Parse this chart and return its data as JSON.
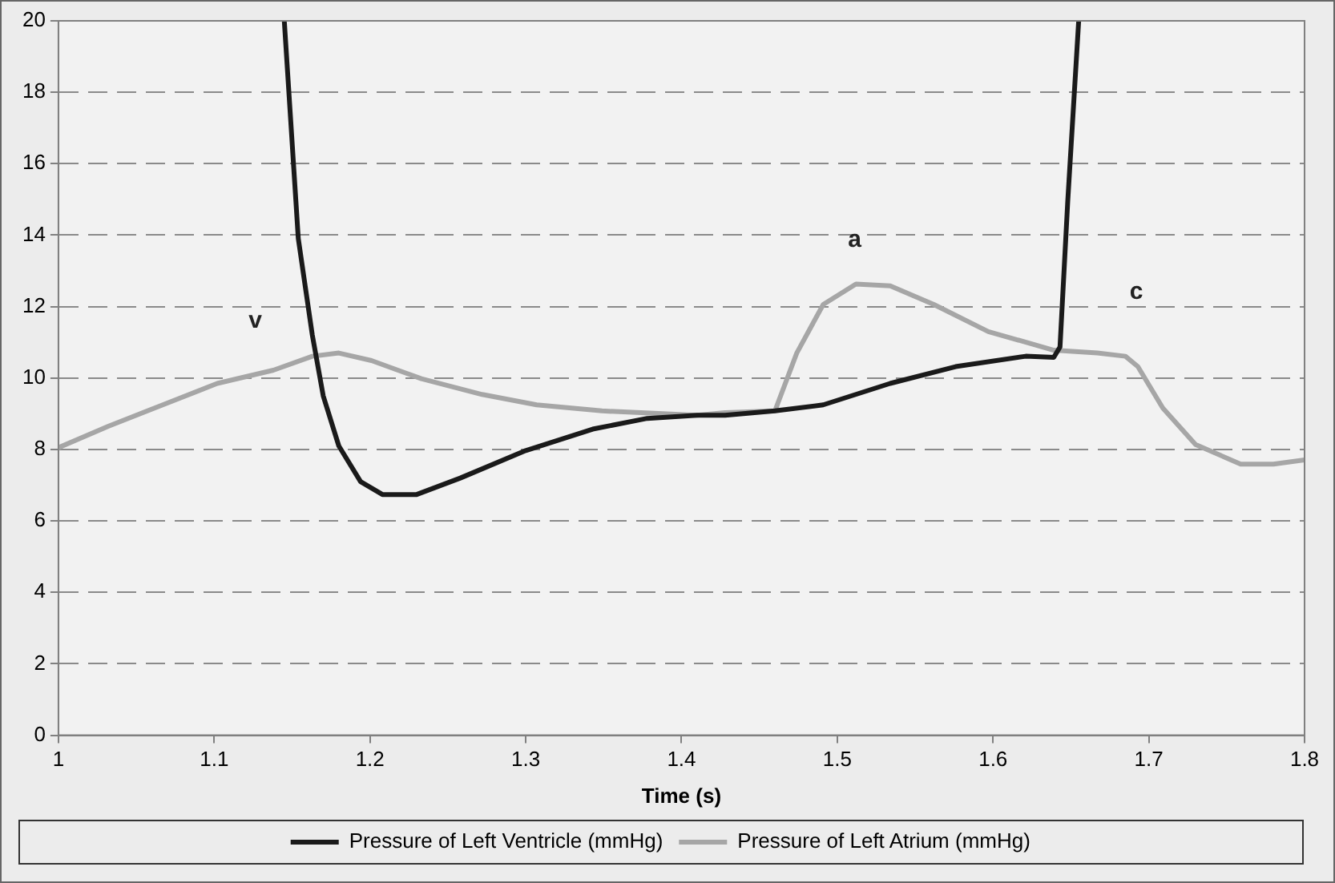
{
  "chart_data": {
    "type": "line",
    "xlabel": "Time (s)",
    "xlim": [
      1,
      1.8
    ],
    "xticks": [
      1,
      1.1,
      1.2,
      1.3,
      1.4,
      1.5,
      1.6,
      1.7,
      1.8
    ],
    "ylim": [
      0,
      20
    ],
    "yticks": [
      0,
      2,
      4,
      6,
      8,
      10,
      12,
      14,
      16,
      18,
      20
    ],
    "grid": "y",
    "legend": "bottom",
    "marker": "none",
    "line_style": "solid",
    "series": [
      {
        "name": "Pressure of Left Ventricle (mmHg)",
        "color": "#1a1a1a",
        "x": [
          1.145,
          1.154,
          1.163,
          1.17,
          1.18,
          1.194,
          1.208,
          1.23,
          1.258,
          1.3,
          1.343,
          1.378,
          1.41,
          1.428,
          1.46,
          1.491,
          1.534,
          1.576,
          1.621,
          1.639,
          1.643,
          1.648,
          1.655
        ],
        "values": [
          20,
          13.9,
          11.2,
          9.5,
          8.1,
          7.1,
          6.74,
          6.74,
          7.2,
          7.97,
          8.57,
          8.87,
          8.96,
          8.96,
          9.08,
          9.25,
          9.85,
          10.32,
          10.61,
          10.58,
          10.87,
          14.97,
          20
        ]
      },
      {
        "name": "Pressure of Left Atrium (mmHg)",
        "color": "#a6a6a6",
        "x": [
          1.0,
          1.032,
          1.067,
          1.102,
          1.138,
          1.163,
          1.18,
          1.201,
          1.233,
          1.272,
          1.307,
          1.349,
          1.41,
          1.428,
          1.46,
          1.474,
          1.491,
          1.512,
          1.534,
          1.562,
          1.597,
          1.639,
          1.667,
          1.685,
          1.693,
          1.709,
          1.73,
          1.759,
          1.78,
          1.8
        ],
        "values": [
          8.05,
          8.65,
          9.25,
          9.85,
          10.22,
          10.61,
          10.7,
          10.49,
          9.98,
          9.54,
          9.25,
          9.08,
          8.96,
          9.03,
          9.08,
          10.7,
          12.06,
          12.63,
          12.58,
          12.06,
          11.3,
          10.78,
          10.7,
          10.61,
          10.32,
          9.16,
          8.14,
          7.59,
          7.59,
          7.71
        ]
      }
    ],
    "annotations": [
      "v",
      "a",
      "c"
    ]
  }
}
